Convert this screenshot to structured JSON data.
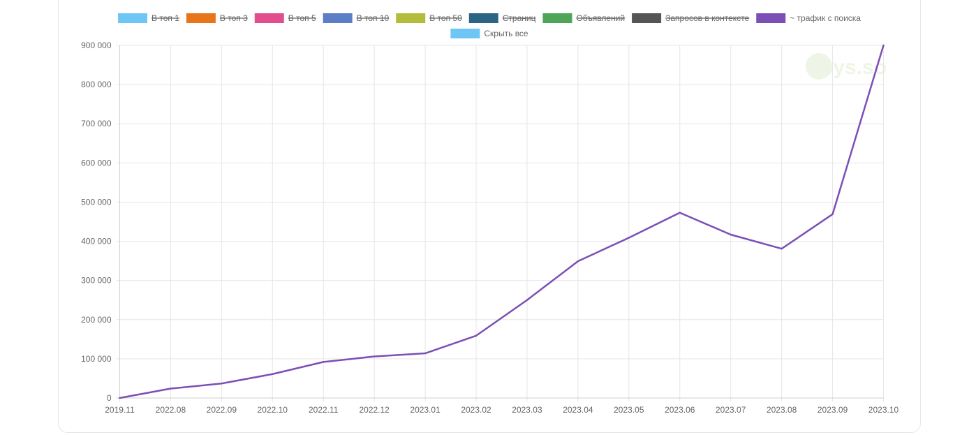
{
  "chart_data": {
    "type": "line",
    "title": "",
    "xlabel": "",
    "ylabel": "",
    "categories": [
      "2019.11",
      "2022.08",
      "2022.09",
      "2022.10",
      "2022.11",
      "2022.12",
      "2023.01",
      "2023.02",
      "2023.03",
      "2023.04",
      "2023.05",
      "2023.06",
      "2023.07",
      "2023.08",
      "2023.09",
      "2023.10"
    ],
    "ylim": [
      0,
      900000
    ],
    "yticks": [
      {
        "value": 0,
        "label": "0"
      },
      {
        "value": 100000,
        "label": "100 000"
      },
      {
        "value": 200000,
        "label": "200 000"
      },
      {
        "value": 300000,
        "label": "300 000"
      },
      {
        "value": 400000,
        "label": "400 000"
      },
      {
        "value": 500000,
        "label": "500 000"
      },
      {
        "value": 600000,
        "label": "600 000"
      },
      {
        "value": 700000,
        "label": "700 000"
      },
      {
        "value": 800000,
        "label": "800 000"
      },
      {
        "value": 900000,
        "label": "900 000"
      }
    ],
    "grid": true,
    "legend_position": "top-center",
    "legend": [
      {
        "name": "В топ 1",
        "color": "#6ec6f5",
        "hidden": true
      },
      {
        "name": "В топ 3",
        "color": "#e8751a",
        "hidden": true
      },
      {
        "name": "В топ 5",
        "color": "#e24d8e",
        "hidden": true
      },
      {
        "name": "В топ 10",
        "color": "#5b7ec7",
        "hidden": true
      },
      {
        "name": "В топ 50",
        "color": "#b3bc3c",
        "hidden": true
      },
      {
        "name": "Страниц",
        "color": "#2c6584",
        "hidden": true
      },
      {
        "name": "Объявлений",
        "color": "#4ea55a",
        "hidden": true
      },
      {
        "name": "Запросов в контексте",
        "color": "#555555",
        "hidden": true
      },
      {
        "name": "~ трафик с поиска",
        "color": "#7b4fb5",
        "hidden": false
      },
      {
        "name": "Скрыть все",
        "color": "#6ec6f5",
        "hidden": false
      }
    ],
    "series": [
      {
        "name": "~ трафик с поиска",
        "color": "#7b4fb5",
        "values": [
          0,
          24000,
          37000,
          61000,
          92000,
          106000,
          114000,
          159000,
          250000,
          349000,
          409000,
          473000,
          417000,
          381000,
          469000,
          900000
        ]
      }
    ]
  },
  "watermark": {
    "text": "keys.so"
  }
}
